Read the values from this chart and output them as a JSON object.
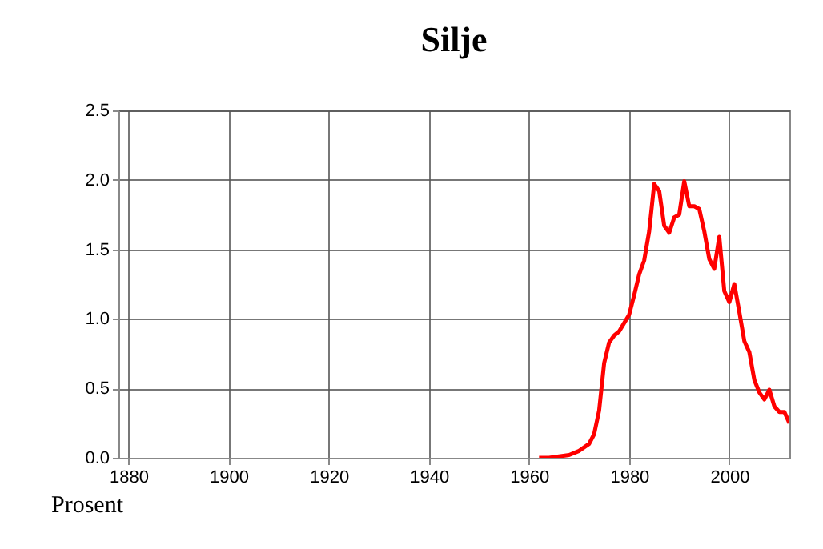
{
  "chart_data": {
    "type": "line",
    "title": "Silje",
    "annotations": [
      "Prosent"
    ],
    "x": [
      1962,
      1964,
      1966,
      1968,
      1970,
      1972,
      1973,
      1974,
      1975,
      1976,
      1977,
      1978,
      1979,
      1980,
      1981,
      1982,
      1983,
      1984,
      1985,
      1986,
      1987,
      1988,
      1989,
      1990,
      1991,
      1992,
      1993,
      1994,
      1995,
      1996,
      1997,
      1998,
      1999,
      2000,
      2001,
      2002,
      2003,
      2004,
      2005,
      2006,
      2007,
      2008,
      2009,
      2010,
      2011,
      2012
    ],
    "series": [
      {
        "color": "#ff0000",
        "values": [
          0,
          0,
          0.01,
          0.02,
          0.05,
          0.1,
          0.17,
          0.34,
          0.68,
          0.83,
          0.88,
          0.91,
          0.97,
          1.03,
          1.17,
          1.32,
          1.42,
          1.63,
          1.97,
          1.92,
          1.67,
          1.62,
          1.73,
          1.75,
          1.99,
          1.81,
          1.81,
          1.79,
          1.63,
          1.43,
          1.36,
          1.59,
          1.2,
          1.12,
          1.25,
          1.05,
          0.84,
          0.76,
          0.56,
          0.47,
          0.42,
          0.49,
          0.37,
          0.33,
          0.33,
          0.25
        ]
      }
    ],
    "xlim": [
      1878,
      2012
    ],
    "xticks": [
      1880,
      1900,
      1920,
      1940,
      1960,
      1980,
      2000
    ],
    "ylim": [
      0,
      2.5
    ],
    "yticks": [
      {
        "value": 0,
        "label": "0.0"
      },
      {
        "value": 0.5,
        "label": "0.5"
      },
      {
        "value": 1,
        "label": "1.0"
      },
      {
        "value": 1.5,
        "label": "1.5"
      },
      {
        "value": 2,
        "label": "2.0"
      },
      {
        "value": 2.5,
        "label": "2.5"
      }
    ],
    "grid": true,
    "line_style": "solid",
    "marker": "none"
  }
}
